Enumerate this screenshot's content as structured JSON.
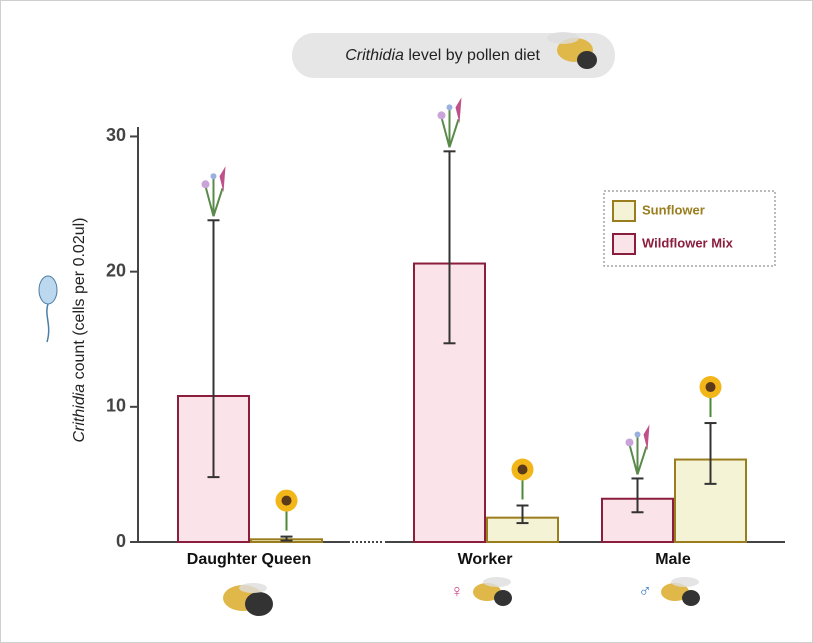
{
  "chart_data": {
    "type": "bar",
    "title_italic": "Crithidia",
    "title_rest": "level by pollen diet",
    "y_label_italic": "Crithidia",
    "y_label_rest": "count (cells per 0.02ul)",
    "categories": [
      "Daughter Queen",
      "Worker",
      "Male"
    ],
    "category_symbols": [
      null,
      "♀",
      "♂"
    ],
    "series": [
      {
        "name": "Wildflower Mix",
        "color": "#fbe3ea",
        "edge": "#8b1d3d",
        "values": [
          10.8,
          20.6,
          3.2
        ],
        "error_low": [
          4.8,
          14.7,
          2.2
        ],
        "error_high": [
          23.8,
          28.9,
          4.7
        ]
      },
      {
        "name": "Sunflower",
        "color": "#f5f3d5",
        "edge": "#9a7d1e",
        "values": [
          0.2,
          1.8,
          6.1
        ],
        "error_low": [
          0.1,
          1.4,
          4.3
        ],
        "error_high": [
          0.4,
          2.7,
          8.8
        ]
      }
    ],
    "legend_order": [
      1,
      0
    ],
    "ylim": [
      0,
      30.7
    ],
    "yticks": [
      0,
      10,
      20,
      30
    ],
    "legend": "upper right"
  }
}
